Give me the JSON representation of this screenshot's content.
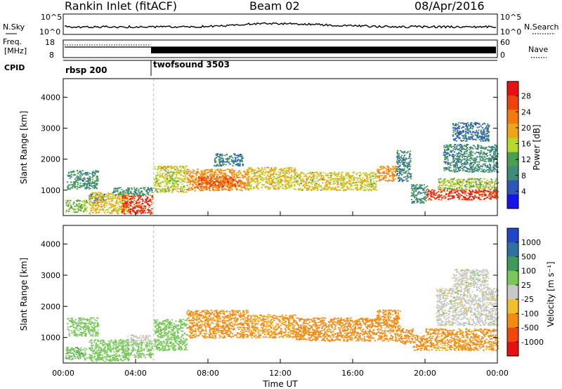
{
  "header": {
    "station": "Rankin Inlet (fitACF)",
    "beam": "Beam 02",
    "date": "08/Apr/2016"
  },
  "top_panels": {
    "nsky_label": "N.Sky",
    "nsearch_label": "N.Search",
    "nsky_ticks": [
      "10^5",
      "10^0"
    ],
    "nsearch_ticks": [
      "10^5",
      "10^0"
    ],
    "freq_label_line1": "Freq.",
    "freq_label_line2": "[MHz]",
    "freq_ticks": [
      "18",
      "8"
    ],
    "nave_label": "Nave",
    "nave_ticks": [
      "60",
      "0"
    ],
    "cpid_label": "CPID",
    "cpid_segments": [
      {
        "name": "rbsp 200",
        "start_hour": 0,
        "end_hour": 5
      },
      {
        "name": "twofsound 3503",
        "start_hour": 5,
        "end_hour": 24
      }
    ]
  },
  "colors": {
    "power": [
      "#1515e8",
      "#2f57b8",
      "#3f8a78",
      "#4aa04f",
      "#b8d82a",
      "#f0a418",
      "#f37a10",
      "#f0420c",
      "#e81010"
    ],
    "velocity": [
      "#e81010",
      "#f0480c",
      "#f28a14",
      "#efc02a",
      "#c8c8c8",
      "#78c85a",
      "#3d9a58",
      "#2f72a0",
      "#2246c8"
    ]
  },
  "chart_data": [
    {
      "type": "heatmap",
      "name": "power",
      "xlabel": "",
      "ylabel": "Slant Range [km]",
      "xlim": [
        0,
        24
      ],
      "ylim": [
        180,
        4600
      ],
      "yticks": [
        "1000",
        "2000",
        "3000",
        "4000"
      ],
      "xticks": [
        "00:00",
        "04:00",
        "08:00",
        "12:00",
        "16:00",
        "20:00",
        "00:00"
      ],
      "colorbar_label": "Power [dB]",
      "colorbar_ticks": [
        "4",
        "8",
        "12",
        "16",
        "20",
        "24",
        "28"
      ],
      "regions": [
        {
          "x": [
            0.2,
            1.9
          ],
          "y": [
            1050,
            1650
          ],
          "v": 10
        },
        {
          "x": [
            1.4,
            2.3
          ],
          "y": [
            600,
            900
          ],
          "v": 8
        },
        {
          "x": [
            0.1,
            1.3
          ],
          "y": [
            300,
            700
          ],
          "v": 14
        },
        {
          "x": [
            1.4,
            3.6
          ],
          "y": [
            250,
            950
          ],
          "v": 18
        },
        {
          "x": [
            3.2,
            4.9
          ],
          "y": [
            250,
            850
          ],
          "v": 27
        },
        {
          "x": [
            2.7,
            4.9
          ],
          "y": [
            850,
            1100
          ],
          "v": 10
        },
        {
          "x": [
            5.0,
            6.8
          ],
          "y": [
            950,
            1800
          ],
          "v": 16
        },
        {
          "x": [
            6.8,
            10.2
          ],
          "y": [
            1000,
            1700
          ],
          "v": 21
        },
        {
          "x": [
            7.4,
            9.8
          ],
          "y": [
            1100,
            1450
          ],
          "v": 25
        },
        {
          "x": [
            8.3,
            9.9
          ],
          "y": [
            1800,
            2200
          ],
          "v": 9
        },
        {
          "x": [
            10.1,
            12.8
          ],
          "y": [
            1050,
            1750
          ],
          "v": 18
        },
        {
          "x": [
            12.8,
            17.3
          ],
          "y": [
            1000,
            1600
          ],
          "v": 17
        },
        {
          "x": [
            17.3,
            18.4
          ],
          "y": [
            1300,
            1800
          ],
          "v": 21
        },
        {
          "x": [
            18.4,
            19.2
          ],
          "y": [
            1300,
            2300
          ],
          "v": 9
        },
        {
          "x": [
            19.2,
            20.1
          ],
          "y": [
            600,
            1200
          ],
          "v": 10
        },
        {
          "x": [
            20.1,
            24.0
          ],
          "y": [
            700,
            1050
          ],
          "v": 27
        },
        {
          "x": [
            20.6,
            24.0
          ],
          "y": [
            1050,
            1400
          ],
          "v": 15
        },
        {
          "x": [
            21.0,
            24.0
          ],
          "y": [
            1600,
            2500
          ],
          "v": 9
        },
        {
          "x": [
            21.5,
            23.5
          ],
          "y": [
            2600,
            3200
          ],
          "v": 7
        }
      ]
    },
    {
      "type": "heatmap",
      "name": "velocity",
      "xlabel": "Time UT",
      "ylabel": "Slant Range [km]",
      "xlim": [
        0,
        24
      ],
      "ylim": [
        180,
        4600
      ],
      "yticks": [
        "1000",
        "2000",
        "3000",
        "4000"
      ],
      "xticks": [
        "00:00",
        "04:00",
        "08:00",
        "12:00",
        "16:00",
        "20:00",
        "00:00"
      ],
      "colorbar_label": "Velocity [m s⁻¹]",
      "colorbar_ticks": [
        "1000",
        "500",
        "100",
        "25",
        "-25",
        "-100",
        "-500",
        "-1000"
      ],
      "regions": [
        {
          "x": [
            0.2,
            1.9
          ],
          "y": [
            1050,
            1650
          ],
          "v": 50
        },
        {
          "x": [
            0.1,
            1.3
          ],
          "y": [
            300,
            700
          ],
          "v": 80
        },
        {
          "x": [
            1.4,
            3.6
          ],
          "y": [
            250,
            950
          ],
          "v": 60
        },
        {
          "x": [
            3.2,
            4.9
          ],
          "y": [
            350,
            900
          ],
          "v": 40
        },
        {
          "x": [
            3.5,
            4.8
          ],
          "y": [
            850,
            1100
          ],
          "v": 0
        },
        {
          "x": [
            5.0,
            6.8
          ],
          "y": [
            600,
            1600
          ],
          "v": 70
        },
        {
          "x": [
            6.8,
            10.2
          ],
          "y": [
            1000,
            1900
          ],
          "v": -150
        },
        {
          "x": [
            10.1,
            12.8
          ],
          "y": [
            1000,
            1750
          ],
          "v": -120
        },
        {
          "x": [
            12.8,
            17.3
          ],
          "y": [
            900,
            1650
          ],
          "v": -200
        },
        {
          "x": [
            17.3,
            18.6
          ],
          "y": [
            900,
            1900
          ],
          "v": -150
        },
        {
          "x": [
            18.6,
            19.3
          ],
          "y": [
            800,
            1300
          ],
          "v": -250
        },
        {
          "x": [
            19.3,
            20.0
          ],
          "y": [
            600,
            1100
          ],
          "v": -300
        },
        {
          "x": [
            20.0,
            24.0
          ],
          "y": [
            600,
            1300
          ],
          "v": -150
        },
        {
          "x": [
            20.6,
            24.0
          ],
          "y": [
            1400,
            2600
          ],
          "v": 0
        },
        {
          "x": [
            21.5,
            23.5
          ],
          "y": [
            2600,
            3200
          ],
          "v": 0
        }
      ]
    }
  ]
}
